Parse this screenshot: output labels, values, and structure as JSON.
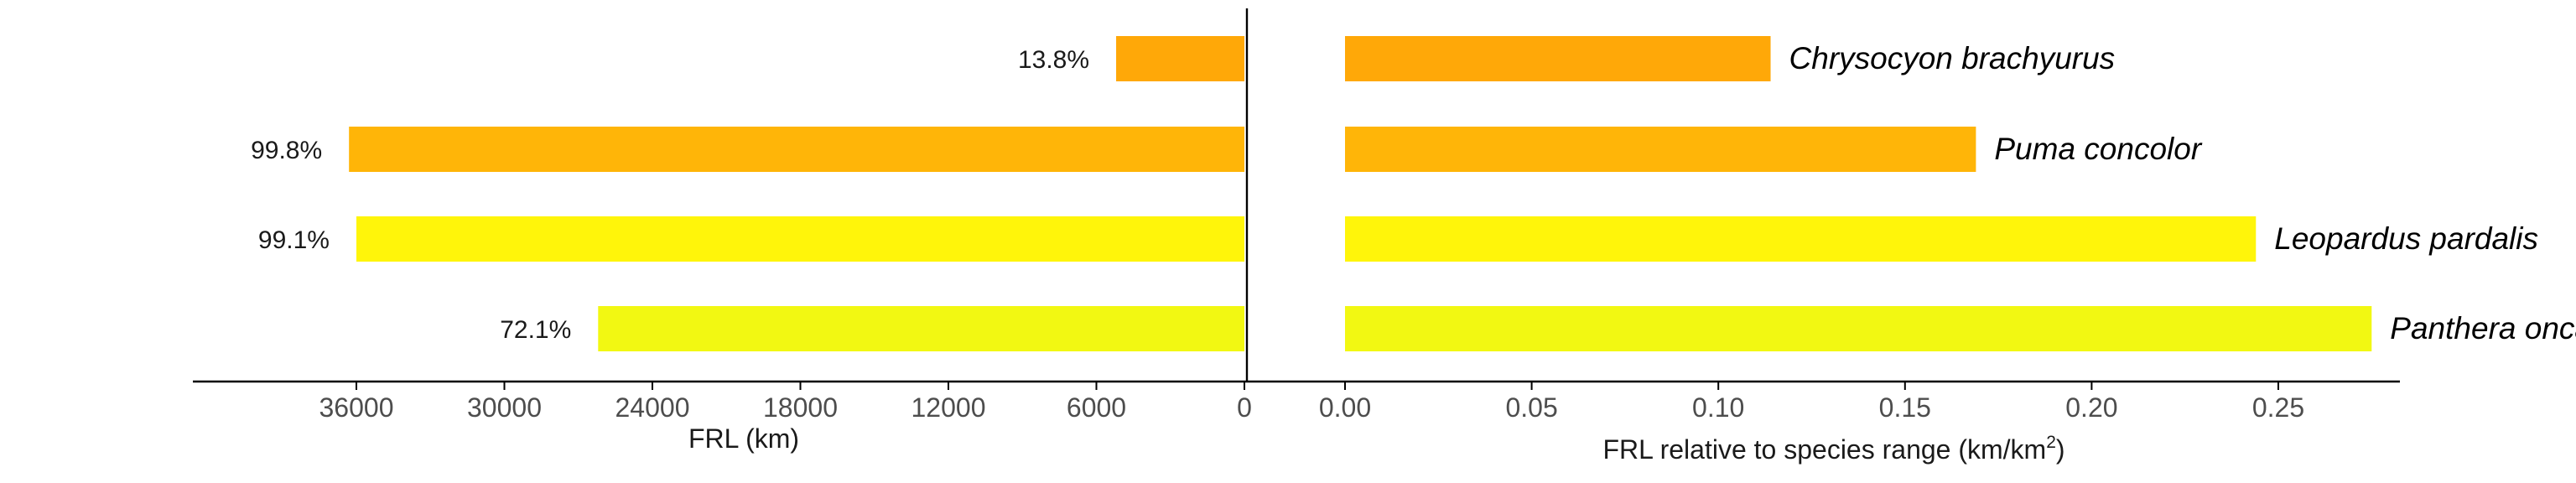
{
  "chart_data": [
    {
      "type": "bar",
      "orientation": "horizontal",
      "reversed_x": true,
      "categories": [
        "Chrysocyon brachyurus",
        "Puma concolor",
        "Leopardus pardalis",
        "Panthera onca"
      ],
      "values": [
        5200,
        36300,
        36000,
        26200
      ],
      "bar_labels": [
        "13.8%",
        "99.8%",
        "99.1%",
        "72.1%"
      ],
      "colors": [
        "#FFA808",
        "#FFB508",
        "#FFF50A",
        "#F2F812"
      ],
      "xlabel": "FRL (km)",
      "xticks": [
        "36000",
        "30000",
        "24000",
        "18000",
        "12000",
        "6000",
        "0"
      ],
      "xlim": [
        0,
        42000
      ],
      "grid": false
    },
    {
      "type": "bar",
      "orientation": "horizontal",
      "categories": [
        "Chrysocyon brachyurus",
        "Puma concolor",
        "Leopardus pardalis",
        "Panthera onca"
      ],
      "values": [
        0.114,
        0.169,
        0.244,
        0.275
      ],
      "colors": [
        "#FFA808",
        "#FFB508",
        "#FFF50A",
        "#F2F812"
      ],
      "xlabel": "FRL relative to species range (km/km",
      "xlabel_superscript": "2",
      "xlabel_suffix": ")",
      "xticks": [
        "0.00",
        "0.05",
        "0.10",
        "0.15",
        "0.20",
        "0.25"
      ],
      "xlim": [
        0,
        0.288
      ],
      "grid": false
    }
  ]
}
